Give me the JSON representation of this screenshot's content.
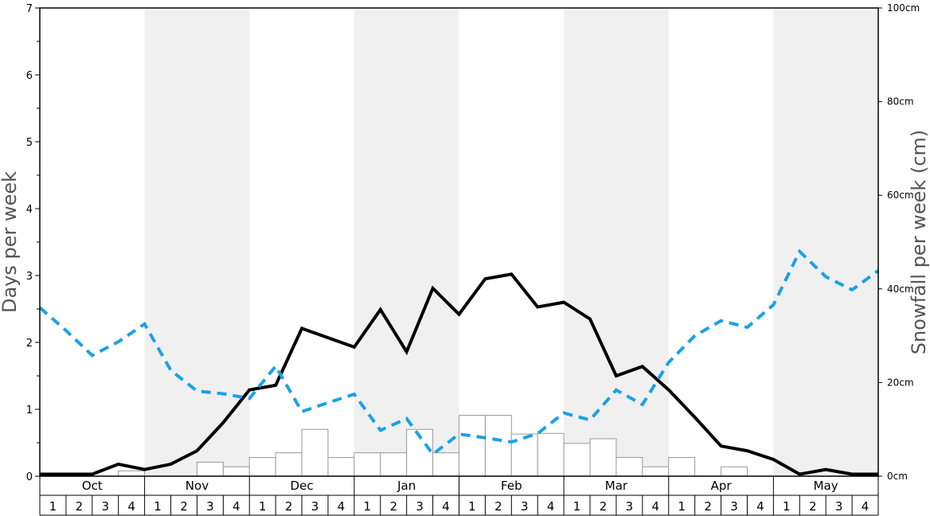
{
  "chart_data": {
    "type": "bar+line",
    "ylabel_left": "Days per week",
    "ylabel_right": "Snowfall per week (cm)",
    "ylim_left": [
      0,
      7
    ],
    "ylim_right": [
      0,
      100
    ],
    "left_ticks": [
      "0",
      "1",
      "2",
      "3",
      "4",
      "5",
      "6",
      "7"
    ],
    "right_ticks": [
      "0cm",
      "20cm",
      "40cm",
      "60cm",
      "80cm",
      "100cm"
    ],
    "months": [
      "Oct",
      "Nov",
      "Dec",
      "Jan",
      "Feb",
      "Mar",
      "Apr",
      "May"
    ],
    "weeks": [
      "1",
      "2",
      "3",
      "4"
    ],
    "alternating_shading": true,
    "series": [
      {
        "kind": "bar",
        "axis": "left",
        "values": [
          0,
          0,
          0,
          0.08,
          0,
          0,
          0.21,
          0.14,
          0.28,
          0.35,
          0.7,
          0.28,
          0.35,
          0.35,
          0.7,
          0.35,
          0.91,
          0.91,
          0.63,
          0.64,
          0.49,
          0.56,
          0.28,
          0.14,
          0.28,
          0,
          0.14,
          0,
          0,
          0,
          0,
          0
        ]
      },
      {
        "kind": "line",
        "style": "solid",
        "color": "#000000",
        "axis": "left",
        "values": [
          0.03,
          0.03,
          0.03,
          0.18,
          0.1,
          0.18,
          0.38,
          0.8,
          1.29,
          1.36,
          2.21,
          2.07,
          1.93,
          2.49,
          1.86,
          2.81,
          2.42,
          2.95,
          3.02,
          2.53,
          2.6,
          2.35,
          1.5,
          1.64,
          1.29,
          0.88,
          0.45,
          0.38,
          0.25,
          0.03,
          0.1,
          0.03,
          0.03
        ]
      },
      {
        "kind": "line",
        "style": "dashed",
        "color": "#1aa1e6",
        "axis": "right",
        "values": [
          36.0,
          31.1,
          25.8,
          28.7,
          32.5,
          22.6,
          18.2,
          17.6,
          16.6,
          23.5,
          13.8,
          15.7,
          17.5,
          9.8,
          12.3,
          4.7,
          9.0,
          8.2,
          7.3,
          9.1,
          13.5,
          12.0,
          18.4,
          15.3,
          24.3,
          30.0,
          33.2,
          31.8,
          36.6,
          48.0,
          42.6,
          39.8,
          43.9
        ]
      }
    ]
  }
}
